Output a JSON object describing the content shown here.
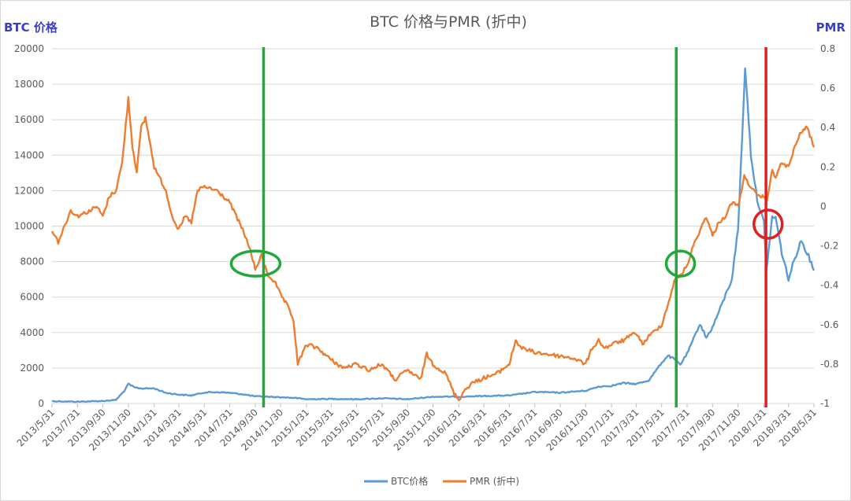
{
  "chart_data": {
    "type": "line",
    "title": "BTC 价格与PMR (折中)",
    "y_left_label": "BTC 价格",
    "y_right_label": "PMR",
    "y_left_range": [
      0,
      20000
    ],
    "y_left_ticks": [
      "0",
      "2000",
      "4000",
      "6000",
      "8000",
      "10000",
      "12000",
      "14000",
      "16000",
      "18000",
      "20000"
    ],
    "y_right_range": [
      -1,
      0.8
    ],
    "y_right_ticks": [
      "-1",
      "-0.8",
      "-0.6",
      "-0.4",
      "-0.2",
      "0",
      "0.2",
      "0.4",
      "0.6",
      "0.8"
    ],
    "x_ticks": [
      "2013/5/31",
      "2013/7/31",
      "2013/9/30",
      "2013/11/30",
      "2014/1/31",
      "2014/3/31",
      "2014/5/31",
      "2014/7/31",
      "2014/9/30",
      "2014/11/30",
      "2015/1/31",
      "2015/3/31",
      "2015/5/31",
      "2015/7/31",
      "2015/9/30",
      "2015/11/30",
      "2016/1/31",
      "2016/3/31",
      "2016/5/31",
      "2016/7/31",
      "2016/9/30",
      "2016/11/30",
      "2017/1/31",
      "2017/3/31",
      "2017/5/31",
      "2017/7/31",
      "2017/9/30",
      "2017/11/30",
      "2018/1/31",
      "2018/3/31",
      "2018/5/31"
    ],
    "grid": "horizontal",
    "legend_position": "bottom",
    "series": [
      {
        "name": "BTC价格",
        "axis": "left",
        "color": "#5b9bd5",
        "x": [
          "2013/5/31",
          "2013/7/31",
          "2013/9/30",
          "2013/10/31",
          "2013/11/20",
          "2013/11/30",
          "2013/12/15",
          "2013/12/31",
          "2014/1/31",
          "2014/2/28",
          "2014/3/31",
          "2014/4/30",
          "2014/5/31",
          "2014/6/30",
          "2014/7/31",
          "2014/8/31",
          "2014/9/30",
          "2014/10/31",
          "2014/11/30",
          "2014/12/31",
          "2015/1/31",
          "2015/3/31",
          "2015/5/31",
          "2015/7/31",
          "2015/9/30",
          "2015/11/30",
          "2016/1/31",
          "2016/3/31",
          "2016/5/31",
          "2016/7/31",
          "2016/9/30",
          "2016/11/30",
          "2016/12/31",
          "2017/1/31",
          "2017/2/28",
          "2017/3/31",
          "2017/4/30",
          "2017/5/31",
          "2017/6/15",
          "2017/6/30",
          "2017/7/15",
          "2017/7/31",
          "2017/8/31",
          "2017/9/15",
          "2017/9/30",
          "2017/10/31",
          "2017/11/15",
          "2017/11/30",
          "2017/12/10",
          "2017/12/17",
          "2017/12/31",
          "2018/1/15",
          "2018/1/31",
          "2018/2/6",
          "2018/2/20",
          "2018/2/28",
          "2018/3/15",
          "2018/3/31",
          "2018/4/10",
          "2018/4/30",
          "2018/5/15",
          "2018/5/31"
        ],
        "values": [
          130,
          100,
          140,
          200,
          700,
          1100,
          900,
          850,
          850,
          600,
          500,
          450,
          620,
          640,
          600,
          520,
          400,
          380,
          350,
          320,
          240,
          260,
          240,
          290,
          240,
          380,
          380,
          420,
          450,
          650,
          610,
          720,
          950,
          1000,
          1150,
          1100,
          1300,
          2300,
          2700,
          2500,
          2200,
          2800,
          4500,
          3700,
          4300,
          6100,
          7000,
          9800,
          15000,
          19000,
          14000,
          11500,
          10200,
          7500,
          10500,
          10500,
          8500,
          7000,
          7800,
          9200,
          8500,
          7500
        ]
      },
      {
        "name": "PMR (折中)",
        "axis": "right",
        "color": "#ed7d31",
        "x": [
          "2013/5/31",
          "2013/6/15",
          "2013/6/30",
          "2013/7/15",
          "2013/7/31",
          "2013/8/31",
          "2013/9/15",
          "2013/9/30",
          "2013/10/15",
          "2013/10/31",
          "2013/11/15",
          "2013/11/30",
          "2013/12/5",
          "2013/12/10",
          "2013/12/20",
          "2013/12/31",
          "2014/1/10",
          "2014/1/31",
          "2014/2/28",
          "2014/3/15",
          "2014/3/31",
          "2014/4/15",
          "2014/4/30",
          "2014/5/15",
          "2014/5/31",
          "2014/6/30",
          "2014/7/31",
          "2014/8/31",
          "2014/9/15",
          "2014/9/30",
          "2014/10/15",
          "2014/10/31",
          "2014/11/15",
          "2014/11/30",
          "2014/12/15",
          "2014/12/31",
          "2015/1/10",
          "2015/1/31",
          "2015/2/28",
          "2015/3/31",
          "2015/4/30",
          "2015/5/31",
          "2015/6/30",
          "2015/7/31",
          "2015/8/31",
          "2015/9/30",
          "2015/10/31",
          "2015/11/15",
          "2015/11/30",
          "2015/12/31",
          "2016/1/10",
          "2016/1/20",
          "2016/1/31",
          "2016/2/15",
          "2016/2/29",
          "2016/3/31",
          "2016/4/30",
          "2016/5/31",
          "2016/6/15",
          "2016/6/30",
          "2016/7/31",
          "2016/8/31",
          "2016/9/30",
          "2016/10/31",
          "2016/11/30",
          "2016/12/15",
          "2016/12/31",
          "2017/1/15",
          "2017/1/31",
          "2017/2/28",
          "2017/3/31",
          "2017/4/15",
          "2017/4/30",
          "2017/5/31",
          "2017/6/15",
          "2017/6/30",
          "2017/7/15",
          "2017/7/31",
          "2017/8/15",
          "2017/8/31",
          "2017/9/15",
          "2017/9/30",
          "2017/10/15",
          "2017/10/31",
          "2017/11/15",
          "2017/11/30",
          "2017/12/15",
          "2017/12/31",
          "2018/1/15",
          "2018/1/31",
          "2018/2/6",
          "2018/2/20",
          "2018/2/28",
          "2018/3/15",
          "2018/3/31",
          "2018/4/15",
          "2018/4/30",
          "2018/5/15",
          "2018/5/31"
        ],
        "values": [
          -0.12,
          -0.18,
          -0.1,
          -0.02,
          -0.05,
          -0.02,
          0,
          -0.05,
          0.05,
          0.08,
          0.22,
          0.55,
          0.42,
          0.3,
          0.18,
          0.4,
          0.45,
          0.2,
          0.08,
          -0.05,
          -0.12,
          -0.05,
          -0.08,
          0.08,
          0.1,
          0.08,
          0.02,
          -0.12,
          -0.2,
          -0.32,
          -0.25,
          -0.35,
          -0.38,
          -0.45,
          -0.5,
          -0.58,
          -0.8,
          -0.7,
          -0.72,
          -0.78,
          -0.82,
          -0.8,
          -0.83,
          -0.8,
          -0.88,
          -0.83,
          -0.88,
          -0.75,
          -0.8,
          -0.85,
          -0.9,
          -0.95,
          -0.98,
          -0.93,
          -0.9,
          -0.87,
          -0.85,
          -0.8,
          -0.68,
          -0.72,
          -0.74,
          -0.75,
          -0.76,
          -0.77,
          -0.8,
          -0.72,
          -0.68,
          -0.72,
          -0.7,
          -0.68,
          -0.64,
          -0.7,
          -0.66,
          -0.6,
          -0.5,
          -0.38,
          -0.35,
          -0.3,
          -0.2,
          -0.12,
          -0.05,
          -0.15,
          -0.08,
          -0.05,
          0.02,
          0,
          0.15,
          0.1,
          0.05,
          0.05,
          0.02,
          0.18,
          0.15,
          0.22,
          0.2,
          0.3,
          0.38,
          0.4,
          0.3
        ]
      }
    ],
    "annotations": [
      {
        "type": "vline",
        "color": "#22a83a",
        "x": "2014/10/20"
      },
      {
        "type": "vline",
        "color": "#22a83a",
        "x": "2017/7/5"
      },
      {
        "type": "vline",
        "color": "#e02020",
        "x": "2018/2/5"
      },
      {
        "type": "ellipse",
        "color": "#22a83a",
        "x": "2014/10/1",
        "y_right": -0.29
      },
      {
        "type": "ellipse",
        "color": "#22a83a",
        "x": "2017/7/15",
        "y_right": -0.29
      },
      {
        "type": "circle",
        "color": "#e02020",
        "x": "2018/2/10",
        "y_right": -0.09
      }
    ]
  }
}
